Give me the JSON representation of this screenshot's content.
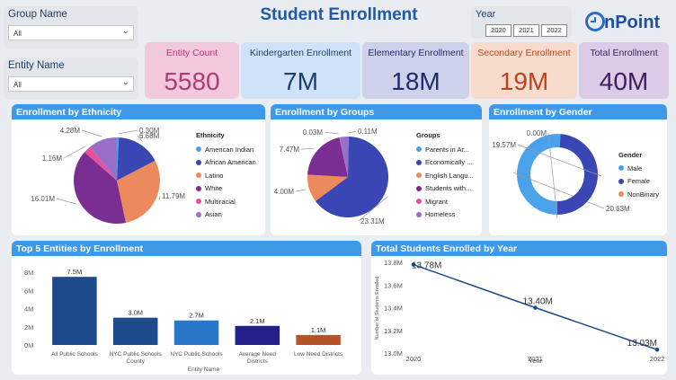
{
  "filters": {
    "group_name": {
      "label": "Group Name",
      "value": "All"
    },
    "entity_name": {
      "label": "Entity Name",
      "value": "All"
    },
    "year": {
      "label": "Year",
      "options": [
        "2020",
        "2021",
        "2022"
      ]
    }
  },
  "header": {
    "title": "Student Enrollment",
    "logo": "OnPoint"
  },
  "kpis": [
    {
      "label": "Entity Count",
      "value": "5580",
      "bg": "#f2c8dd",
      "color": "#b13a73"
    },
    {
      "label": "Kindergarten Enrollment",
      "value": "7M",
      "bg": "#cfe2f7",
      "color": "#1c3f6e"
    },
    {
      "label": "Elementary Enrollment",
      "value": "18M",
      "bg": "#cdd2ea",
      "color": "#23296e"
    },
    {
      "label": "Secondary Enrollment",
      "value": "19M",
      "bg": "#f7dccd",
      "color": "#b9441e"
    },
    {
      "label": "Total Enrollment",
      "value": "40M",
      "bg": "#dccbe6",
      "color": "#3b1f5e"
    }
  ],
  "ethnicity": {
    "title": "Enrollment by Ethnicity",
    "legend_title": "Ethnicity",
    "chart_data": {
      "type": "pie",
      "categories": [
        "American Indian",
        "African American",
        "Latino",
        "White",
        "Multiracial",
        "Asian"
      ],
      "values": [
        0.3,
        6.68,
        11.79,
        16.01,
        1.16,
        4.28
      ],
      "labels": [
        "0.30M",
        "6.68M",
        "11.79M",
        "16.01M",
        "1.16M",
        "4.28M"
      ],
      "colors": [
        "#4aa3ea",
        "#3a46b4",
        "#ec8a5d",
        "#7b2e91",
        "#e6519a",
        "#9a6fc9"
      ]
    }
  },
  "groups": {
    "title": "Enrollment by Groups",
    "legend_title": "Groups",
    "chart_data": {
      "type": "pie",
      "categories": [
        "Parents in Ar...",
        "Economically ...",
        "English Langu...",
        "Students with...",
        "Migrant",
        "Homeless"
      ],
      "values": [
        0.11,
        23.31,
        4.0,
        7.47,
        0.03,
        1.2
      ],
      "labels": [
        "0.11M",
        "23.31M",
        "4.00M",
        "7.47M",
        "0.03M",
        ""
      ],
      "colors": [
        "#4aa3ea",
        "#3a46b4",
        "#ec8a5d",
        "#7b2e91",
        "#e6519a",
        "#9a6fc9"
      ]
    }
  },
  "gender": {
    "title": "Enrollment by Gender",
    "legend_title": "Gender",
    "chart_data": {
      "type": "pie",
      "categories": [
        "Male",
        "Female",
        "NonBinary"
      ],
      "values": [
        20.63,
        19.57,
        0.004
      ],
      "labels": [
        "20.63M",
        "19.57M",
        "0.00M"
      ],
      "colors": [
        "#4aa3ea",
        "#3a46b4",
        "#ec8a5d"
      ]
    }
  },
  "top5": {
    "title": "Top 5 Entities by Enrollment",
    "chart_data": {
      "type": "bar",
      "xlabel": "Entity Name",
      "categories": [
        "All Public Schools",
        "NYC Public Schools County",
        "NYC Public Schools",
        "Average Need Districts",
        "Low Need Districts"
      ],
      "values": [
        7.5,
        3.0,
        2.7,
        2.1,
        1.1
      ],
      "value_labels": [
        "7.5M",
        "3.0M",
        "2.7M",
        "2.1M",
        "1.1M"
      ],
      "colors": [
        "#1c4a8b",
        "#1c4a8b",
        "#2a77c9",
        "#23208a",
        "#b5532a"
      ],
      "ylim": [
        0,
        9
      ],
      "yticks": [
        "0M",
        "2M",
        "4M",
        "6M",
        "8M"
      ]
    }
  },
  "yearly": {
    "title": "Total Students Enrolled by Year",
    "chart_data": {
      "type": "line",
      "xlabel": "Year",
      "ylabel": "Number of Students Enrolled",
      "x": [
        "2020",
        "2021",
        "2022"
      ],
      "values": [
        13.78,
        13.4,
        13.03
      ],
      "value_labels": [
        "13.78M",
        "13.40M",
        "13.03M"
      ],
      "ylim": [
        13.0,
        13.8
      ],
      "yticks": [
        "13.0M",
        "13.2M",
        "13.4M",
        "13.6M",
        "13.8M"
      ],
      "color": "#1c4a8b"
    }
  }
}
